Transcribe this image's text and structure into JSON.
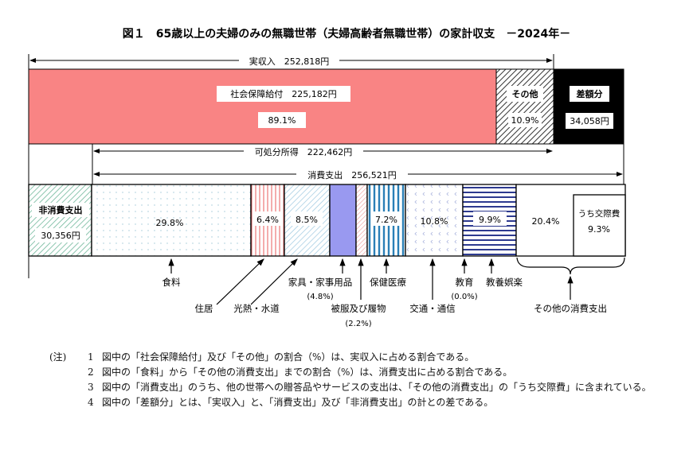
{
  "title": "図１　65歳以上の夫婦のみの無職世帯（夫婦高齢者無職世帯）の家計収支　－2024年－",
  "income": {
    "label": "実収入　252,818円",
    "social_security": {
      "label": "社会保障給付　225,182円",
      "percent": "89.1%",
      "color": "#f98484"
    },
    "other": {
      "label": "その他",
      "percent": "10.9%"
    },
    "deficit": {
      "label": "差額分",
      "value": "34,058円",
      "color": "#000000"
    }
  },
  "disposable_income": "可処分所得　222,462円",
  "consumption": {
    "label": "消費支出　256,521円",
    "non_consumption": {
      "label": "非消費支出",
      "value": "30,356円"
    },
    "categories": [
      {
        "name": "食料",
        "percent": "29.8%"
      },
      {
        "name": "住居",
        "percent": "6.4%"
      },
      {
        "name": "光熱・水道",
        "percent": "8.5%"
      },
      {
        "name": "家具・家事用品",
        "percent": "(4.8%)"
      },
      {
        "name": "被服及び履物",
        "percent": "(2.2%)"
      },
      {
        "name": "保健医療",
        "percent": "7.2%"
      },
      {
        "name": "交通・通信",
        "percent": "10.8%"
      },
      {
        "name": "教育",
        "percent": "(0.0%)"
      },
      {
        "name": "教養娯楽",
        "percent": "9.9%"
      },
      {
        "name": "その他の消費支出",
        "percent": "20.4%"
      }
    ],
    "social_expenses": {
      "label": "うち交際費",
      "percent": "9.3%"
    }
  },
  "notes": {
    "label": "(注)",
    "items": [
      {
        "num": "1",
        "text": "図中の「社会保障給付」及び「その他」の割合（%）は、実収入に占める割合である。"
      },
      {
        "num": "2",
        "text": "図中の「食料」から「その他の消費支出」までの割合（%）は、消費支出に占める割合である。"
      },
      {
        "num": "3",
        "text": "図中の「消費支出」のうち、他の世帯への贈答品やサービスの支出は、「その他の消費支出」の「うち交際費」に含まれている。"
      },
      {
        "num": "4",
        "text": "図中の「差額分」とは、「実収入」と、「消費支出」及び「非消費支出」の計との差である。"
      }
    ]
  }
}
